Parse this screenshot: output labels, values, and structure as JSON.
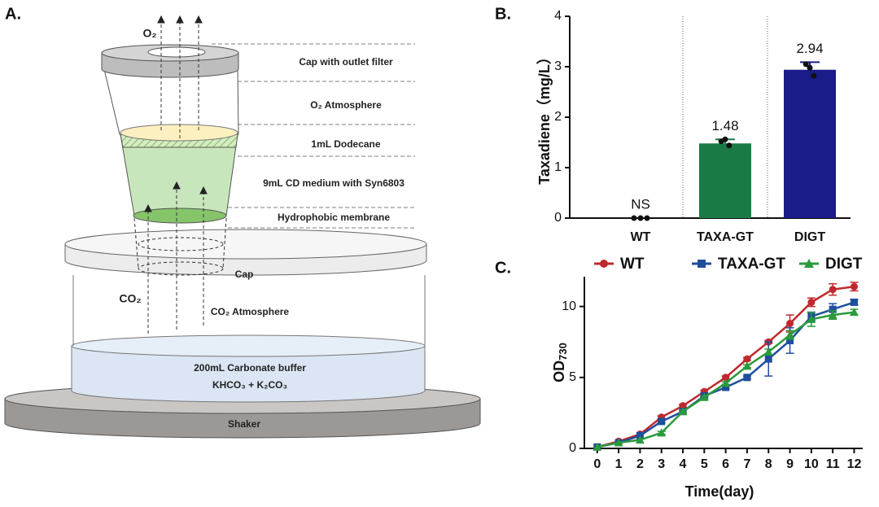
{
  "diagram": {
    "panel": "A.",
    "o2": "O₂",
    "labels": [
      "Cap with outlet filter",
      "O₂ Atmosphere",
      "1mL Dodecane",
      "9mL CD medium with Syn6803",
      "Hydrophobic membrane"
    ],
    "cap": "Cap",
    "co2": "CO₂",
    "co2_atmosphere": "CO₂ Atmosphere",
    "buffer": [
      "200mL Carbonate buffer",
      "KHCO₃ + K₂CO₃"
    ],
    "shaker": "Shaker"
  },
  "chart_data": [
    {
      "type": "bar",
      "panel": "B.",
      "ylabel": "Taxadiene（mg/L）",
      "categories": [
        "WT",
        "TAXA-GT",
        "DIGT"
      ],
      "values": [
        0,
        1.48,
        2.94
      ],
      "value_labels": [
        "NS",
        "1.48",
        "2.94"
      ],
      "errors": [
        0,
        0.08,
        0.15
      ],
      "points": [
        [
          0,
          0,
          0
        ],
        [
          1.52,
          1.56,
          1.44
        ],
        [
          3.05,
          2.98,
          2.82
        ]
      ],
      "colors": [
        "#1a7a45",
        "#1a7a45",
        "#1b1b8a"
      ],
      "ylim": [
        0,
        4
      ],
      "yticks": [
        0,
        1,
        2,
        3,
        4
      ]
    },
    {
      "type": "line",
      "panel": "C.",
      "ylabel": "OD",
      "ylabel_subscript": "730",
      "xlabel": "Time(day)",
      "x": [
        0,
        1,
        2,
        3,
        4,
        5,
        6,
        7,
        8,
        9,
        10,
        11,
        12
      ],
      "series": [
        {
          "name": "WT",
          "color": "#c0282d",
          "marker": "circle",
          "values": [
            0.1,
            0.5,
            1.0,
            2.2,
            3.0,
            4.0,
            5.0,
            6.3,
            7.5,
            8.8,
            10.3,
            11.2,
            11.4
          ],
          "errors": [
            0,
            0,
            0,
            0.1,
            0.1,
            0.1,
            0.1,
            0.1,
            0.1,
            0.6,
            0.3,
            0.4,
            0.3
          ]
        },
        {
          "name": "TAXA-GT",
          "color": "#1f4e9c",
          "marker": "square",
          "values": [
            0.1,
            0.4,
            0.9,
            1.9,
            2.6,
            3.7,
            4.3,
            5.0,
            6.3,
            7.6,
            9.3,
            9.8,
            10.3
          ],
          "errors": [
            0,
            0,
            0,
            0.1,
            0.1,
            0.1,
            0.1,
            0.1,
            1.2,
            0.9,
            0.3,
            0.4,
            0.2
          ]
        },
        {
          "name": "DIGT",
          "color": "#2a9a3c",
          "marker": "triangle",
          "values": [
            0.1,
            0.4,
            0.6,
            1.1,
            2.6,
            3.6,
            4.6,
            5.8,
            6.8,
            8.0,
            9.1,
            9.4,
            9.6
          ],
          "errors": [
            0,
            0,
            0,
            0.1,
            0.1,
            0.1,
            0.1,
            0.1,
            0.2,
            0.3,
            0.5,
            0.3,
            0.2
          ]
        }
      ],
      "xlim": [
        -0.6,
        12.4
      ],
      "xticks": [
        0,
        1,
        2,
        3,
        4,
        5,
        6,
        7,
        8,
        9,
        10,
        11,
        12
      ],
      "ylim": [
        0,
        12.1
      ],
      "yticks": [
        0,
        5,
        10
      ]
    }
  ]
}
